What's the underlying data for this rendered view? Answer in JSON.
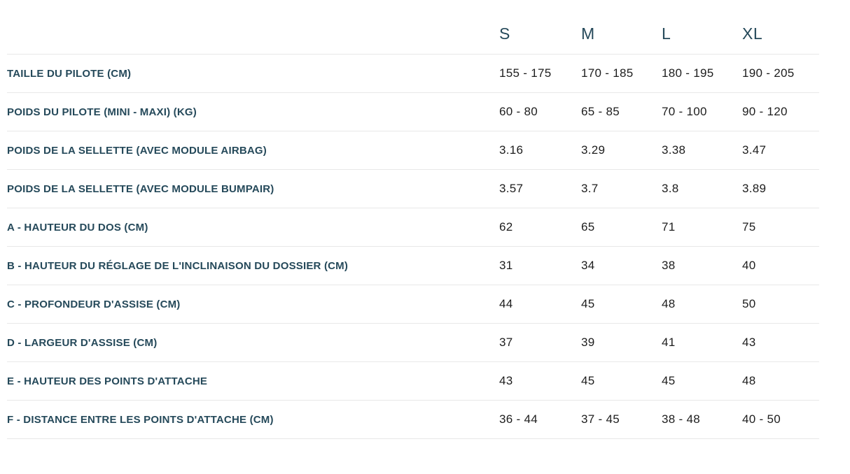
{
  "table": {
    "size_headers": [
      "S",
      "M",
      "L",
      "XL"
    ],
    "rows": [
      {
        "label": "TAILLE DU PILOTE (CM)",
        "values": [
          "155 - 175",
          "170 - 185",
          "180 - 195",
          "190 - 205"
        ]
      },
      {
        "label": "POIDS DU PILOTE (MINI - MAXI) (KG)",
        "values": [
          "60 - 80",
          "65 - 85",
          "70 - 100",
          "90 - 120"
        ]
      },
      {
        "label": "POIDS DE LA SELLETTE (AVEC MODULE AIRBAG)",
        "values": [
          "3.16",
          "3.29",
          "3.38",
          "3.47"
        ]
      },
      {
        "label": "POIDS DE LA SELLETTE (AVEC MODULE BUMPAIR)",
        "values": [
          "3.57",
          "3.7",
          "3.8",
          "3.89"
        ]
      },
      {
        "label": "A - HAUTEUR DU DOS (CM)",
        "values": [
          "62",
          "65",
          "71",
          "75"
        ]
      },
      {
        "label": "B - HAUTEUR DU RÉGLAGE DE L'INCLINAISON DU DOSSIER (CM)",
        "values": [
          "31",
          "34",
          "38",
          "40"
        ]
      },
      {
        "label": "C - PROFONDEUR D'ASSISE (CM)",
        "values": [
          "44",
          "45",
          "48",
          "50"
        ]
      },
      {
        "label": "D - LARGEUR D'ASSISE (CM)",
        "values": [
          "37",
          "39",
          "41",
          "43"
        ]
      },
      {
        "label": "E - HAUTEUR DES POINTS D'ATTACHE",
        "values": [
          "43",
          "45",
          "45",
          "48"
        ]
      },
      {
        "label": "F - DISTANCE ENTRE LES POINTS D'ATTACHE (CM)",
        "values": [
          "36 - 44",
          "37 - 45",
          "38 - 48",
          "40 - 50"
        ]
      }
    ],
    "colors": {
      "label_color": "#25495a",
      "value_color": "#1d1d1d",
      "divider_color": "#e8e8e8",
      "background": "#ffffff"
    }
  }
}
